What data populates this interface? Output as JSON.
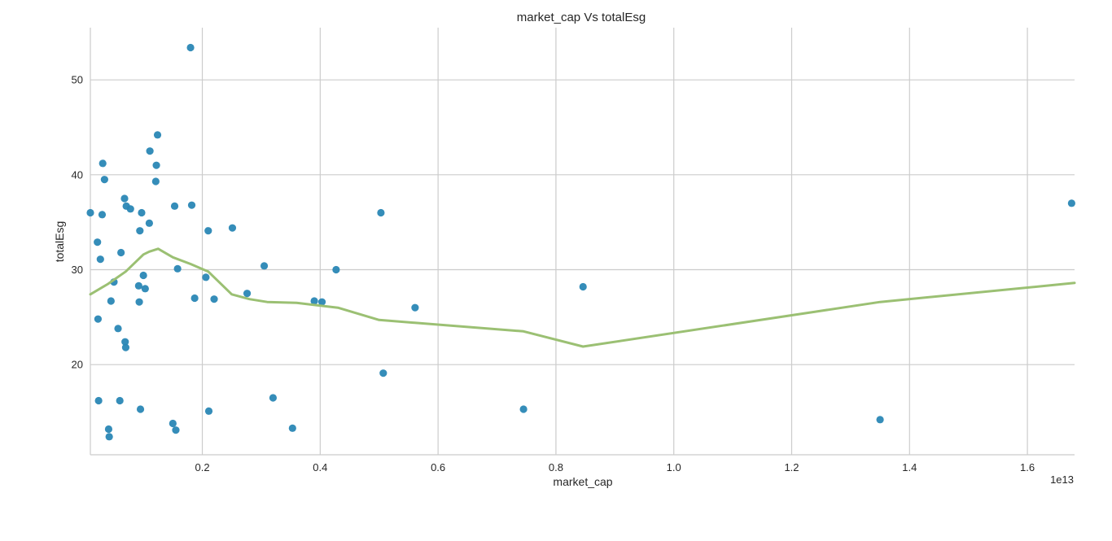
{
  "chart_data": {
    "type": "scatter",
    "title": "market_cap Vs totalEsg",
    "xlabel": "market_cap",
    "ylabel": "totalEsg",
    "x_offset_label": "1e13",
    "x_multiplier": 10000000000000.0,
    "xlim": [
      0.01,
      1.68
    ],
    "ylim": [
      10.5,
      55.5
    ],
    "xticks": [
      0.2,
      0.4,
      0.6,
      0.8,
      1.0,
      1.2,
      1.4,
      1.6
    ],
    "xtick_labels": [
      "0.2",
      "0.4",
      "0.6",
      "0.8",
      "1.0",
      "1.2",
      "1.4",
      "1.6"
    ],
    "yticks": [
      20,
      30,
      40,
      50
    ],
    "ytick_labels": [
      "20",
      "30",
      "40",
      "50"
    ],
    "grid": true,
    "point_color": "#2a87b5",
    "line_color": "#9bc073",
    "series": [
      {
        "type": "scatter",
        "points": [
          [
            0.01,
            36.0
          ],
          [
            0.022,
            32.9
          ],
          [
            0.023,
            24.8
          ],
          [
            0.024,
            16.2
          ],
          [
            0.027,
            31.1
          ],
          [
            0.03,
            35.8
          ],
          [
            0.031,
            41.2
          ],
          [
            0.034,
            39.5
          ],
          [
            0.041,
            13.2
          ],
          [
            0.042,
            12.4
          ],
          [
            0.045,
            26.7
          ],
          [
            0.05,
            28.7
          ],
          [
            0.057,
            23.8
          ],
          [
            0.06,
            16.2
          ],
          [
            0.062,
            31.8
          ],
          [
            0.068,
            37.5
          ],
          [
            0.069,
            22.4
          ],
          [
            0.07,
            21.8
          ],
          [
            0.071,
            36.7
          ],
          [
            0.078,
            36.4
          ],
          [
            0.092,
            28.3
          ],
          [
            0.093,
            26.6
          ],
          [
            0.094,
            34.1
          ],
          [
            0.095,
            15.3
          ],
          [
            0.097,
            36.0
          ],
          [
            0.1,
            29.4
          ],
          [
            0.103,
            28.0
          ],
          [
            0.11,
            34.9
          ],
          [
            0.111,
            42.5
          ],
          [
            0.121,
            39.3
          ],
          [
            0.122,
            41.0
          ],
          [
            0.124,
            44.2
          ],
          [
            0.15,
            13.8
          ],
          [
            0.153,
            36.7
          ],
          [
            0.155,
            13.1
          ],
          [
            0.158,
            30.1
          ],
          [
            0.18,
            53.4
          ],
          [
            0.182,
            36.8
          ],
          [
            0.187,
            27.0
          ],
          [
            0.206,
            29.2
          ],
          [
            0.21,
            34.1
          ],
          [
            0.211,
            15.1
          ],
          [
            0.22,
            26.9
          ],
          [
            0.251,
            34.4
          ],
          [
            0.276,
            27.5
          ],
          [
            0.305,
            30.4
          ],
          [
            0.32,
            16.5
          ],
          [
            0.353,
            13.3
          ],
          [
            0.39,
            26.7
          ],
          [
            0.403,
            26.6
          ],
          [
            0.427,
            30.0
          ],
          [
            0.503,
            36.0
          ],
          [
            0.507,
            19.1
          ],
          [
            0.561,
            26.0
          ],
          [
            0.745,
            15.3
          ],
          [
            0.846,
            28.2
          ],
          [
            1.35,
            14.2
          ],
          [
            1.675,
            37.0
          ]
        ]
      },
      {
        "type": "line",
        "points": [
          [
            0.01,
            27.4
          ],
          [
            0.04,
            28.5
          ],
          [
            0.07,
            29.8
          ],
          [
            0.1,
            31.6
          ],
          [
            0.11,
            31.9
          ],
          [
            0.125,
            32.2
          ],
          [
            0.15,
            31.3
          ],
          [
            0.18,
            30.6
          ],
          [
            0.21,
            29.8
          ],
          [
            0.25,
            27.4
          ],
          [
            0.28,
            26.9
          ],
          [
            0.31,
            26.6
          ],
          [
            0.36,
            26.5
          ],
          [
            0.43,
            26.0
          ],
          [
            0.5,
            24.7
          ],
          [
            0.745,
            23.5
          ],
          [
            0.846,
            21.9
          ],
          [
            1.35,
            26.6
          ],
          [
            1.68,
            28.6
          ]
        ]
      }
    ]
  }
}
